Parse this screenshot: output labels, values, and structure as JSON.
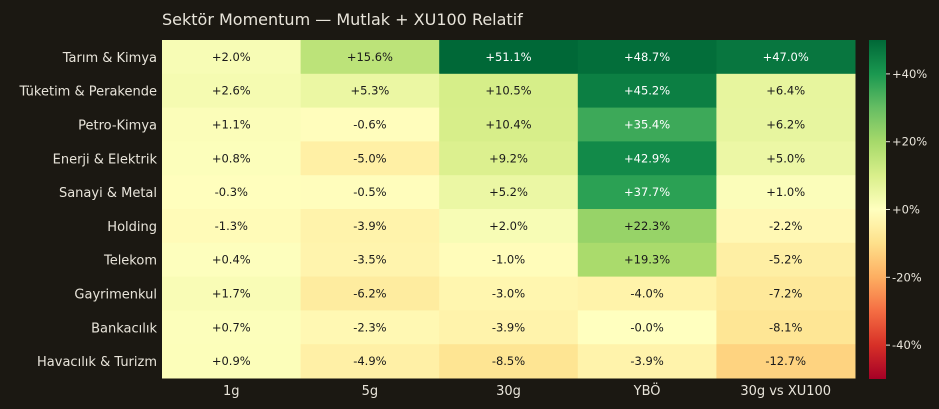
{
  "chart_data": {
    "type": "heatmap",
    "title": "Sektör Momentum — Mutlak + XU100 Relatif",
    "rows": [
      "Tarım & Kimya",
      "Tüketim & Perakende",
      "Petro-Kimya",
      "Enerji & Elektrik",
      "Sanayi & Metal",
      "Holding",
      "Telekom",
      "Gayrimenkul",
      "Bankacılık",
      "Havacılık & Turizm"
    ],
    "columns": [
      "1g",
      "5g",
      "30g",
      "YBÖ",
      "30g vs XU100"
    ],
    "values": [
      [
        2.0,
        15.6,
        51.1,
        48.7,
        47.0
      ],
      [
        2.6,
        5.3,
        10.5,
        45.2,
        6.4
      ],
      [
        1.1,
        -0.6,
        10.4,
        35.4,
        6.2
      ],
      [
        0.8,
        -5.0,
        9.2,
        42.9,
        5.0
      ],
      [
        -0.3,
        -0.5,
        5.2,
        37.7,
        1.0
      ],
      [
        -1.3,
        -3.9,
        2.0,
        22.3,
        -2.2
      ],
      [
        0.4,
        -3.5,
        -1.0,
        19.3,
        -5.2
      ],
      [
        1.7,
        -6.2,
        -3.0,
        -4.0,
        -7.2
      ],
      [
        0.7,
        -2.3,
        -3.9,
        -0.0,
        -8.1
      ],
      [
        0.9,
        -4.9,
        -8.5,
        -3.9,
        -12.7
      ]
    ],
    "labels": [
      [
        "+2.0%",
        "+15.6%",
        "+51.1%",
        "+48.7%",
        "+47.0%"
      ],
      [
        "+2.6%",
        "+5.3%",
        "+10.5%",
        "+45.2%",
        "+6.4%"
      ],
      [
        "+1.1%",
        "-0.6%",
        "+10.4%",
        "+35.4%",
        "+6.2%"
      ],
      [
        "+0.8%",
        "-5.0%",
        "+9.2%",
        "+42.9%",
        "+5.0%"
      ],
      [
        "-0.3%",
        "-0.5%",
        "+5.2%",
        "+37.7%",
        "+1.0%"
      ],
      [
        "-1.3%",
        "-3.9%",
        "+2.0%",
        "+22.3%",
        "-2.2%"
      ],
      [
        "+0.4%",
        "-3.5%",
        "-1.0%",
        "+19.3%",
        "-5.2%"
      ],
      [
        "+1.7%",
        "-6.2%",
        "-3.0%",
        "-4.0%",
        "-7.2%"
      ],
      [
        "+0.7%",
        "-2.3%",
        "-3.9%",
        "-0.0%",
        "-8.1%"
      ],
      [
        "+0.9%",
        "-4.9%",
        "-8.5%",
        "-3.9%",
        "-12.7%"
      ]
    ],
    "colorscale": "RdYlGn",
    "vmin": -50,
    "vmax": 50,
    "colorbar_ticks": [
      {
        "value": 40,
        "label": "+40%"
      },
      {
        "value": 20,
        "label": "+20%"
      },
      {
        "value": 0,
        "label": "+0%"
      },
      {
        "value": -20,
        "label": "-20%"
      },
      {
        "value": -40,
        "label": "-40%"
      }
    ]
  }
}
